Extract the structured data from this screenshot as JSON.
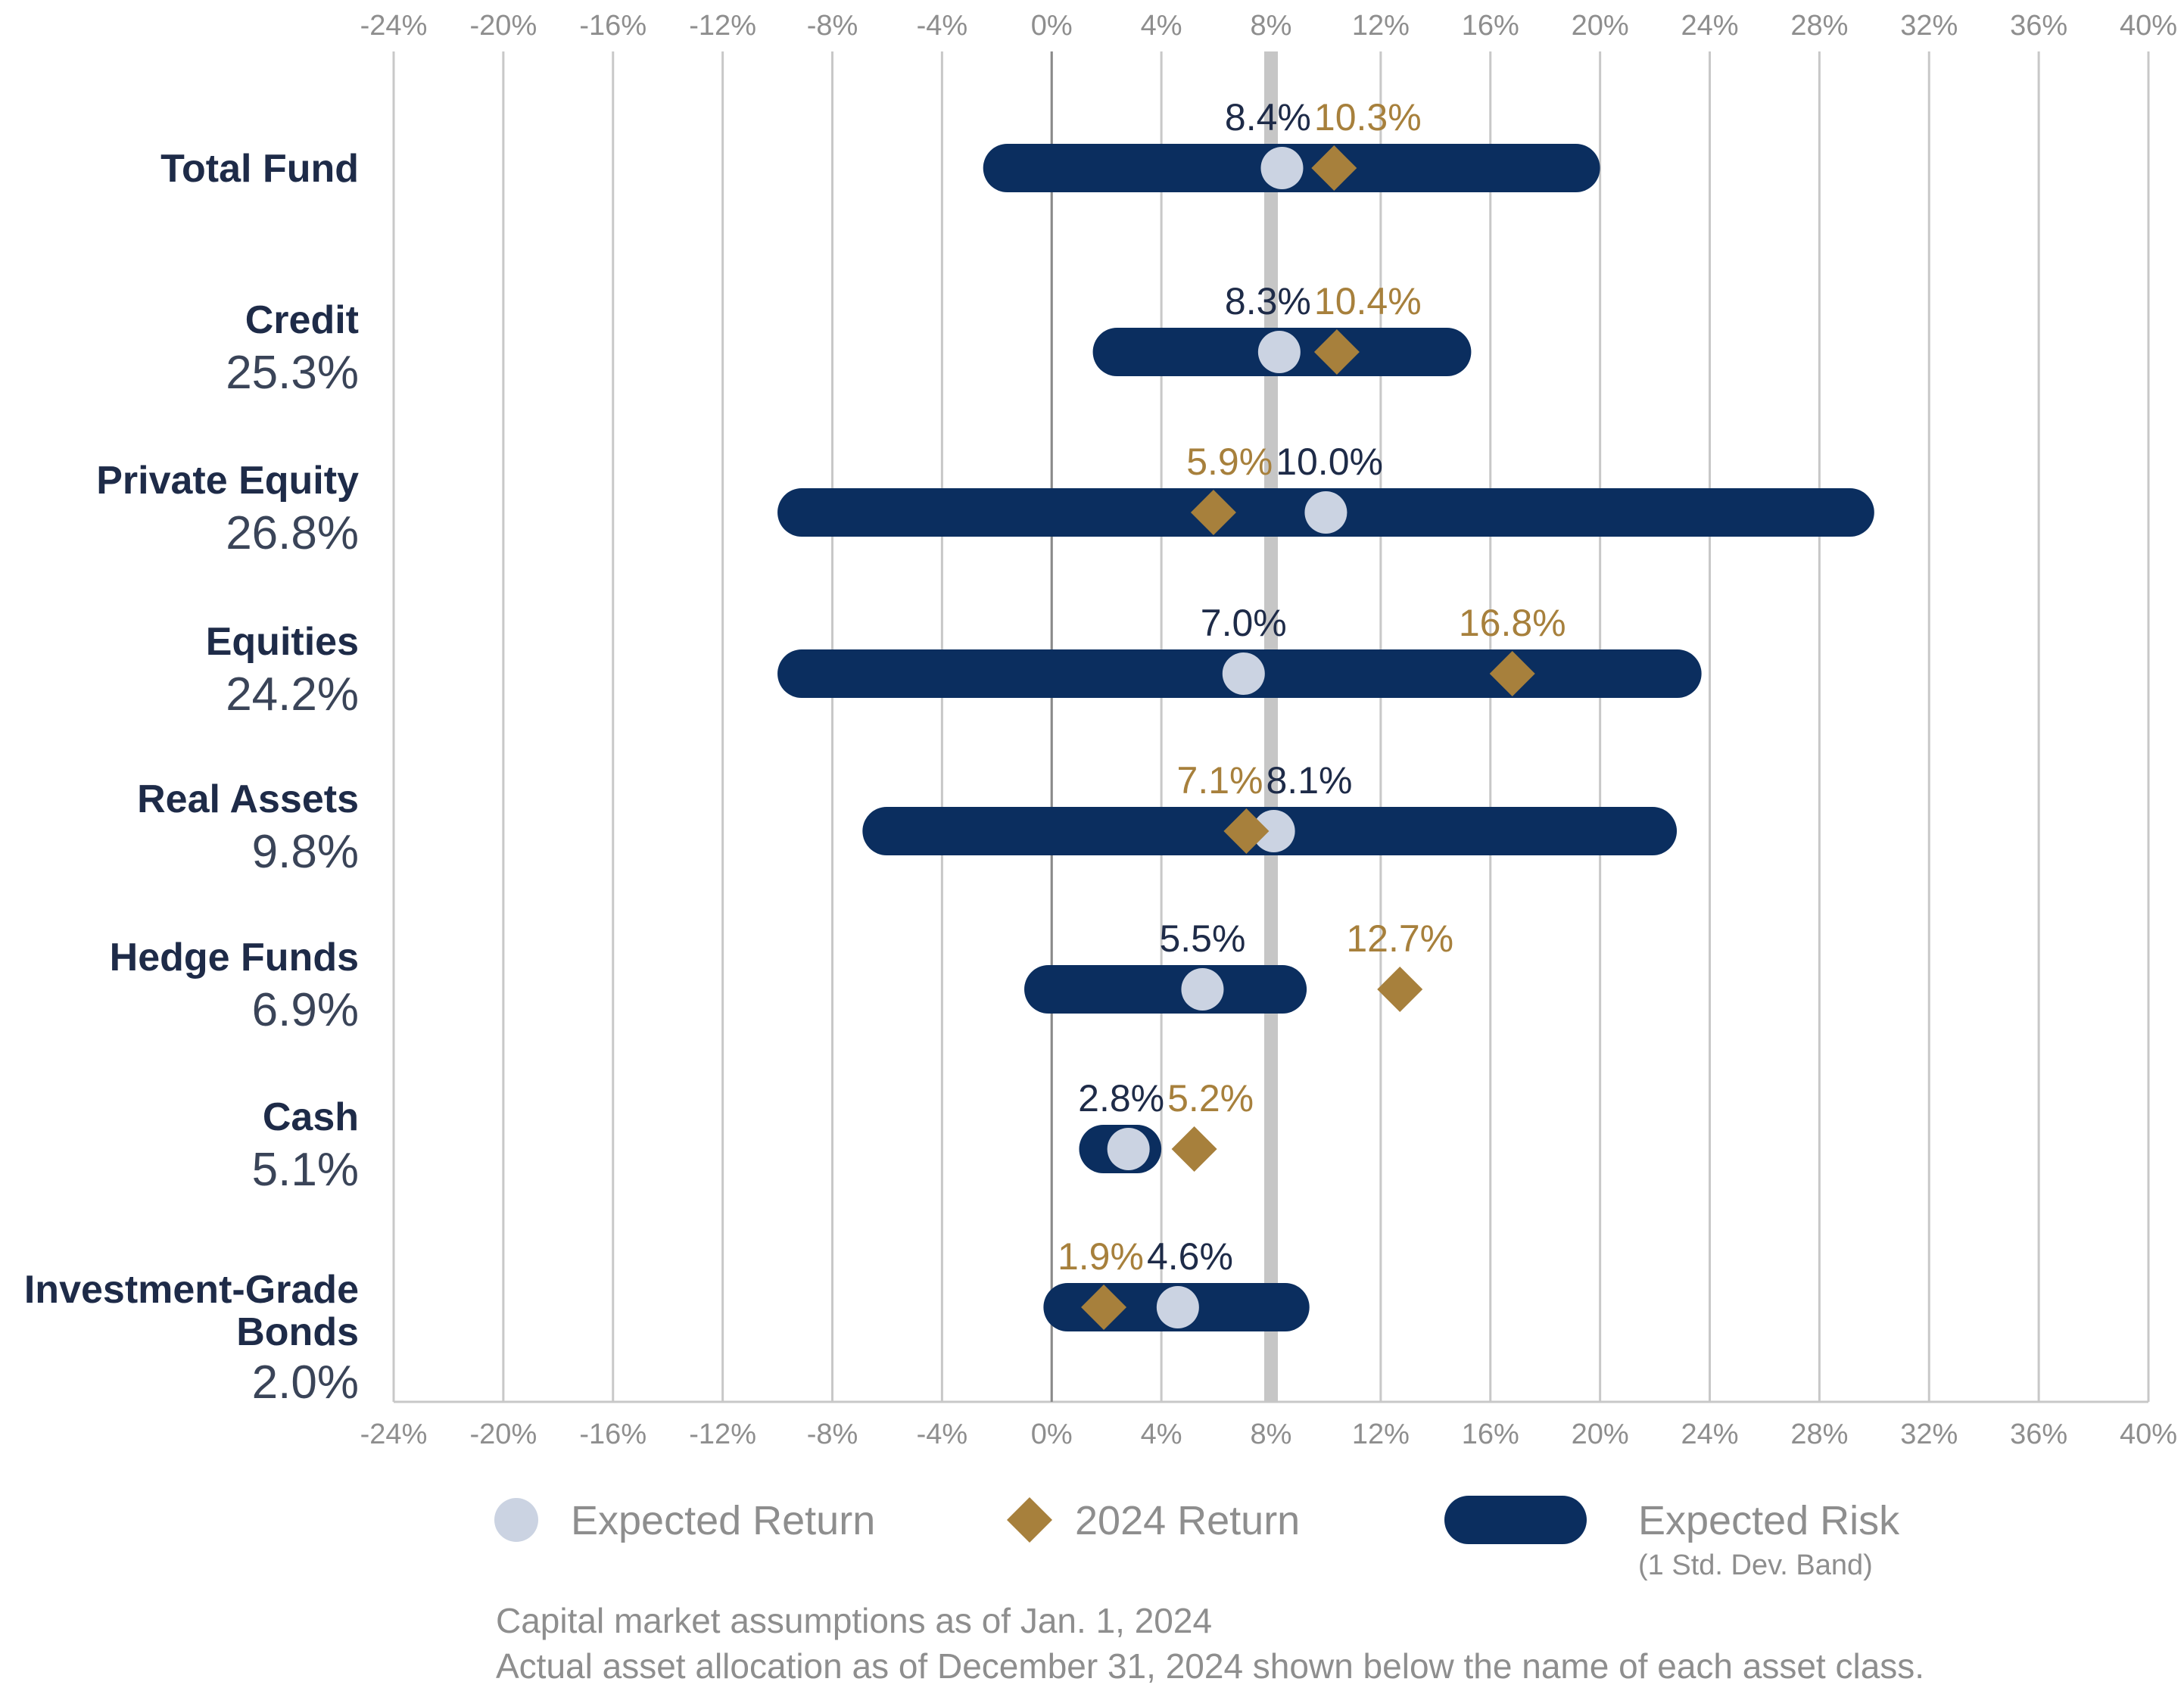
{
  "colors": {
    "risk_band": "#0b2e5f",
    "expected_marker": "#cbd3e2",
    "actual_marker": "#a7803c",
    "expected_label": "#1e2b48",
    "actual_label": "#a7803c",
    "grid": "#c8c8c8",
    "zero_line": "#8a8a8a",
    "eight_line": "#c6c6c6",
    "axis_text": "#8e8e8e"
  },
  "chart_data": {
    "type": "range-dot",
    "xlim": [
      -24,
      40
    ],
    "xticks": [
      "-24%",
      "-20%",
      "-16%",
      "-12%",
      "-8%",
      "-4%",
      "0%",
      "4%",
      "8%",
      "12%",
      "16%",
      "20%",
      "24%",
      "28%",
      "32%",
      "36%",
      "40%"
    ],
    "xtick_values": [
      -24,
      -20,
      -16,
      -12,
      -8,
      -4,
      0,
      4,
      8,
      12,
      16,
      20,
      24,
      28,
      32,
      36,
      40
    ],
    "reference_line": 8,
    "grid": true,
    "categories": [
      {
        "name": "Total Fund",
        "allocation": "",
        "risk_low": -2.5,
        "risk_high": 20.0,
        "expected": 8.4,
        "expected_label": "8.4%",
        "actual": 10.3,
        "actual_label": "10.3%"
      },
      {
        "name": "Credit",
        "allocation": "25.3%",
        "risk_low": 1.5,
        "risk_high": 15.3,
        "expected": 8.3,
        "expected_label": "8.3%",
        "actual": 10.4,
        "actual_label": "10.4%"
      },
      {
        "name": "Private Equity",
        "allocation": "26.8%",
        "risk_low": -10.0,
        "risk_high": 30.0,
        "expected": 10.0,
        "expected_label": "10.0%",
        "actual": 5.9,
        "actual_label": "5.9%"
      },
      {
        "name": "Equities",
        "allocation": "24.2%",
        "risk_low": -10.0,
        "risk_high": 23.7,
        "expected": 7.0,
        "expected_label": "7.0%",
        "actual": 16.8,
        "actual_label": "16.8%"
      },
      {
        "name": "Real Assets",
        "allocation": "9.8%",
        "risk_low": -6.9,
        "risk_high": 22.8,
        "expected": 8.1,
        "expected_label": "8.1%",
        "actual": 7.1,
        "actual_label": "7.1%"
      },
      {
        "name": "Hedge Funds",
        "allocation": "6.9%",
        "risk_low": -1.0,
        "risk_high": 9.3,
        "expected": 5.5,
        "expected_label": "5.5%",
        "actual": 12.7,
        "actual_label": "12.7%"
      },
      {
        "name": "Cash",
        "allocation": "5.1%",
        "risk_low": 1.0,
        "risk_high": 4.0,
        "expected": 2.8,
        "expected_label": "2.8%",
        "actual": 5.2,
        "actual_label": "5.2%"
      },
      {
        "name": "Investment-Grade Bonds",
        "name_lines": [
          "Investment-Grade",
          "Bonds"
        ],
        "allocation": "2.0%",
        "risk_low": -0.3,
        "risk_high": 9.4,
        "expected": 4.6,
        "expected_label": "4.6%",
        "actual": 1.9,
        "actual_label": "1.9%"
      }
    ],
    "legend": {
      "placement": "bottom",
      "entries": [
        {
          "label": "Expected Return",
          "marker": "circle"
        },
        {
          "label": "2024 Return",
          "marker": "diamond"
        },
        {
          "label": "Expected Risk",
          "sublabel": "(1 Std. Dev. Band)",
          "marker": "band"
        }
      ]
    },
    "notes": [
      "Capital market assumptions as of Jan. 1, 2024",
      "Actual asset allocation as of December 31, 2024 shown below the name of each asset class."
    ]
  }
}
